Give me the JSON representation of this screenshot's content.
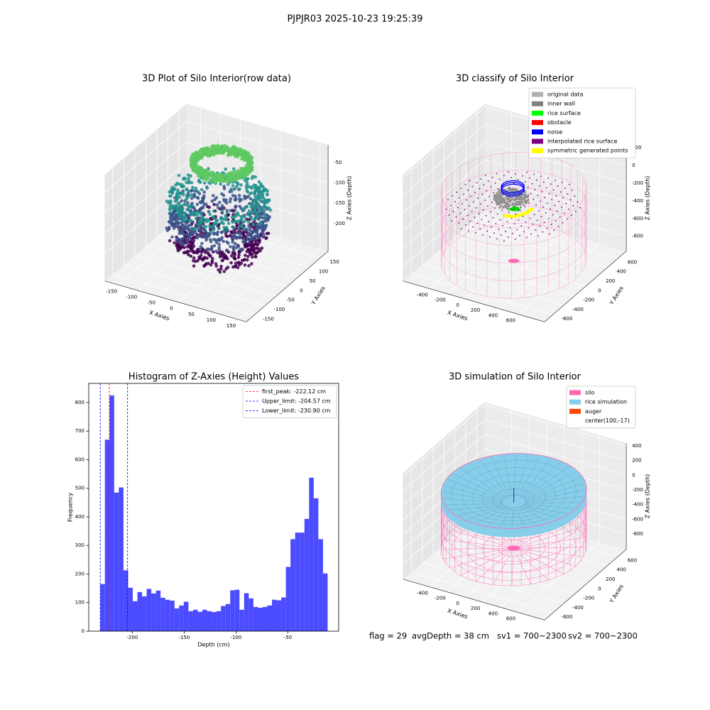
{
  "title": "PJPJR03 2025-10-23 19:25:39",
  "footer": [
    "flag = 29",
    "avgDepth = 38 cm",
    "sv1 = 700~2300",
    "sv2 = 700~2300"
  ],
  "chart_data": [
    {
      "type": "scatter3d",
      "title": "3D Plot of Silo Interior(row data)",
      "xlabel": "X Axies",
      "ylabel": "Y Axies",
      "zlabel": "Z Axies (Depth)",
      "xlim": [
        -185,
        170
      ],
      "ylim": [
        -185,
        185
      ],
      "zlim": [
        -268,
        -7
      ],
      "xticks": [
        -150,
        -100,
        -50,
        0,
        50,
        100,
        150
      ],
      "yticks": [
        -150,
        -100,
        -50,
        0,
        50,
        100,
        150
      ],
      "zticks": [
        -200,
        -150,
        -100,
        -50
      ]
    },
    {
      "type": "classify3d",
      "title": "3D classify of Silo Interior",
      "xlabel": "X Axies",
      "ylabel": "Y Axies",
      "zlabel": "Z Axies (Depth)",
      "xlim": [
        -700,
        900
      ],
      "ylim": [
        -750,
        750
      ],
      "zlim": [
        -968,
        230
      ],
      "xticks": [
        -400,
        -200,
        0,
        200,
        400,
        600
      ],
      "yticks": [
        -600,
        -400,
        -200,
        0,
        200,
        400,
        600
      ],
      "zticks": [
        -800,
        -600,
        -400,
        -200,
        0,
        200
      ],
      "legend": [
        {
          "name": "original data",
          "color": "#b0b0b0"
        },
        {
          "name": "inner wall",
          "color": "#808080"
        },
        {
          "name": "rice surface",
          "color": "#00ff00"
        },
        {
          "name": "obstacle",
          "color": "#ff0000"
        },
        {
          "name": "noise",
          "color": "#0000ff"
        },
        {
          "name": "interpolated rice surface",
          "color": "#800080"
        },
        {
          "name": "symmetric generated points",
          "color": "#ffff00"
        }
      ]
    },
    {
      "type": "histogram",
      "title": "Histogram of Z-Axies (Height) Values",
      "xlabel": "Depth (cm)",
      "ylabel": "Frequency",
      "color": "#4b4bff",
      "xlim": [
        -242,
        -1
      ],
      "ylim": [
        0,
        867
      ],
      "xticks": [
        -200,
        -150,
        -100,
        -50
      ],
      "yticks": [
        0,
        100,
        200,
        300,
        400,
        500,
        600,
        700,
        800
      ],
      "bins": [
        -230.9,
        -226.43,
        -221.95,
        -217.48,
        -213.0,
        -208.53,
        -204.05,
        -199.58,
        -195.1,
        -190.63,
        -186.15,
        -181.68,
        -177.2,
        -172.73,
        -168.25,
        -163.78,
        -159.3,
        -154.83,
        -150.35,
        -145.88,
        -141.4,
        -136.93,
        -132.45,
        -127.98,
        -123.5,
        -119.03,
        -114.55,
        -110.08,
        -105.6,
        -101.13,
        -96.65,
        -92.18,
        -87.7,
        -83.23,
        -78.75,
        -74.28,
        -69.8,
        -65.33,
        -60.85,
        -56.38,
        -51.9,
        -47.43,
        -42.95,
        -38.48,
        -34.0,
        -29.53,
        -25.05,
        -20.58,
        -16.1,
        -11.63
      ],
      "counts": [
        165,
        670,
        825,
        485,
        503,
        213,
        152,
        105,
        137,
        122,
        148,
        132,
        142,
        117,
        110,
        107,
        80,
        90,
        103,
        70,
        75,
        68,
        75,
        70,
        67,
        70,
        88,
        95,
        143,
        145,
        75,
        133,
        115,
        85,
        82,
        85,
        90,
        110,
        108,
        118,
        225,
        322,
        345,
        345,
        393,
        537,
        465,
        322,
        202
      ],
      "lines": [
        {
          "label": "first_peak: -222.12 cm",
          "value": -222.12,
          "color": "#ff0000"
        },
        {
          "label": "Upper_limit: -204.57 cm",
          "value": -204.57,
          "color": "#0000ff"
        },
        {
          "label": "Lower_limit: -230.90 cm",
          "value": -230.9,
          "color": "#0000ff"
        }
      ]
    },
    {
      "type": "surface3d",
      "title": "3D simulation of Silo Interior",
      "xlabel": "X Axies",
      "ylabel": "Y Axies",
      "zlabel": "Z Axies (Depth)",
      "xlim": [
        -700,
        900
      ],
      "ylim": [
        -750,
        750
      ],
      "zlim": [
        -1010,
        436
      ],
      "xticks": [
        -400,
        -200,
        0,
        200,
        400,
        600
      ],
      "yticks": [
        -600,
        -400,
        -200,
        0,
        200,
        400,
        600
      ],
      "zticks": [
        -800,
        -600,
        -400,
        -200,
        0,
        200,
        400
      ],
      "legend": [
        {
          "name": "silo",
          "color": "#ff69b4"
        },
        {
          "name": "rice simulation",
          "color": "#87ceeb"
        },
        {
          "name": "auger",
          "color": "#ff4500"
        },
        {
          "name": "center(100,-17)",
          "color": "#ffffff"
        }
      ]
    }
  ]
}
